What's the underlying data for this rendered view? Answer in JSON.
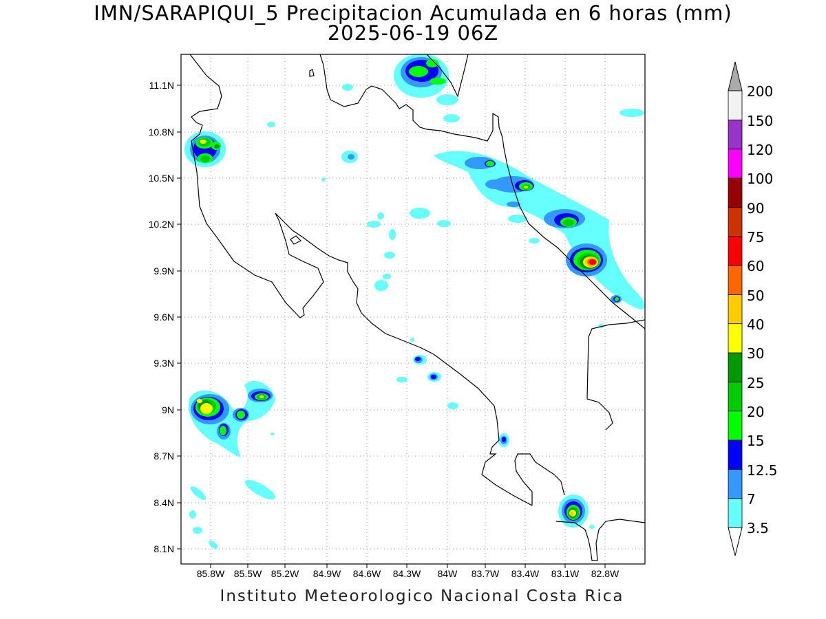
{
  "title": {
    "line1": "IMN/SARAPIQUI_5 Precipitacion Acumulada en 6 horas (mm)",
    "line2": "2025-06-19 06Z"
  },
  "credit": "Instituto Meteorologico Nacional Costa Rica",
  "axes": {
    "lon_ticks": [
      "85.8W",
      "85.5W",
      "85.2W",
      "84.9W",
      "84.6W",
      "84.3W",
      "84W",
      "83.7W",
      "83.4W",
      "83.1W",
      "82.8W"
    ],
    "lat_ticks": [
      "11.1N",
      "10.8N",
      "10.5N",
      "10.2N",
      "9.9N",
      "9.6N",
      "9.3N",
      "9N",
      "8.7N",
      "8.4N",
      "8.1N"
    ],
    "grid": "dotted"
  },
  "colorbar": {
    "labels": [
      "3.5",
      "7",
      "12.5",
      "15",
      "20",
      "25",
      "30",
      "40",
      "50",
      "60",
      "75",
      "90",
      "100",
      "120",
      "150",
      "200"
    ],
    "colors": [
      "#66ffff",
      "#3399ff",
      "#0000ff",
      "#00ff00",
      "#00cc00",
      "#009900",
      "#ffff00",
      "#ffcc00",
      "#ff6600",
      "#ff0000",
      "#cc3300",
      "#990000",
      "#ff00ff",
      "#9933cc",
      "#f2f2f2",
      "#aaaaaa"
    ]
  }
}
